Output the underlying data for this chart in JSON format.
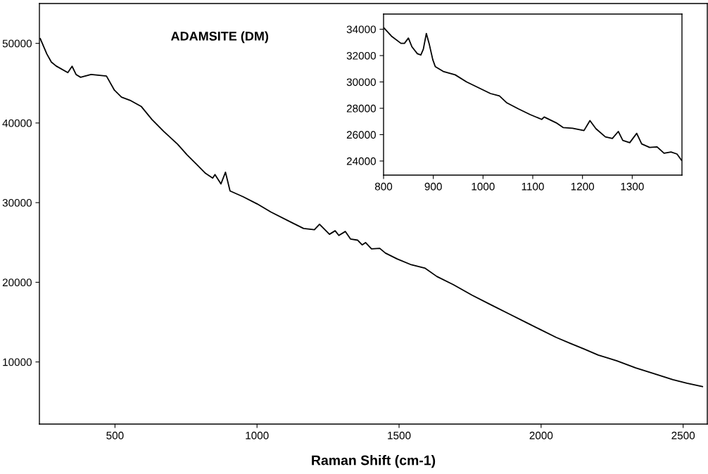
{
  "chart_data": [
    {
      "type": "line",
      "title": "ADAMSITE (DM)",
      "xlabel": "Raman Shift (cm-1)",
      "xlim": [
        234,
        2585
      ],
      "ylim": [
        2200,
        55000
      ],
      "xticks": [
        500,
        1000,
        1500,
        2000,
        2500
      ],
      "yticks": [
        10000,
        20000,
        30000,
        40000,
        50000
      ],
      "grid": false,
      "legend": false,
      "marker": "none",
      "line_style": "solid",
      "series": [
        {
          "color": "#000000",
          "x": [
            237,
            260,
            276,
            293,
            334,
            349,
            363,
            379,
            416,
            470,
            498,
            523,
            556,
            593,
            630,
            671,
            720,
            753,
            786,
            819,
            844,
            852,
            873,
            889,
            905,
            951,
            1000,
            1049,
            1123,
            1164,
            1202,
            1220,
            1255,
            1275,
            1288,
            1311,
            1329,
            1354,
            1370,
            1382,
            1403,
            1432,
            1452,
            1493,
            1543,
            1592,
            1633,
            1691,
            1757,
            1822,
            1888,
            1954,
            1995,
            2053,
            2102,
            2152,
            2201,
            2267,
            2333,
            2398,
            2464,
            2513,
            2568
          ],
          "values": [
            50590,
            48680,
            47650,
            47150,
            46330,
            47120,
            46090,
            45740,
            46090,
            45890,
            44120,
            43240,
            42800,
            42060,
            40440,
            38970,
            37350,
            36030,
            34850,
            33670,
            33090,
            33530,
            32350,
            33820,
            31470,
            30740,
            29850,
            28820,
            27490,
            26760,
            26610,
            27290,
            26030,
            26470,
            25880,
            26380,
            25440,
            25290,
            24700,
            24990,
            24200,
            24260,
            23670,
            22940,
            22200,
            21760,
            20730,
            19700,
            18380,
            17200,
            16020,
            14840,
            14110,
            13080,
            12350,
            11610,
            10870,
            10140,
            9260,
            8520,
            7780,
            7340,
            6900
          ]
        }
      ]
    },
    {
      "type": "line",
      "xlim": [
        800,
        1400
      ],
      "ylim": [
        22930,
        35150
      ],
      "xticks": [
        800,
        900,
        1000,
        1100,
        1200,
        1300
      ],
      "yticks": [
        24000,
        26000,
        28000,
        30000,
        32000,
        34000
      ],
      "grid": false,
      "legend": false,
      "marker": "none",
      "line_style": "solid",
      "series": [
        {
          "color": "#000000",
          "x": [
            801,
            816,
            835,
            842,
            850,
            857,
            868,
            875,
            880,
            886,
            892,
            899,
            904,
            920,
            944,
            967,
            991,
            1015,
            1033,
            1048,
            1071,
            1095,
            1118,
            1123,
            1147,
            1161,
            1180,
            1203,
            1215,
            1227,
            1246,
            1260,
            1272,
            1281,
            1295,
            1309,
            1319,
            1335,
            1350,
            1364,
            1378,
            1390,
            1399
          ],
          "values": [
            34090,
            33470,
            32930,
            32930,
            33330,
            32670,
            32140,
            32050,
            32490,
            33680,
            32850,
            31690,
            31160,
            30800,
            30540,
            30000,
            29560,
            29120,
            28940,
            28410,
            27960,
            27520,
            27160,
            27340,
            26900,
            26540,
            26490,
            26310,
            27070,
            26450,
            25830,
            25710,
            26240,
            25560,
            25390,
            26100,
            25300,
            25030,
            25070,
            24590,
            24680,
            24530,
            24060
          ]
        }
      ]
    }
  ]
}
